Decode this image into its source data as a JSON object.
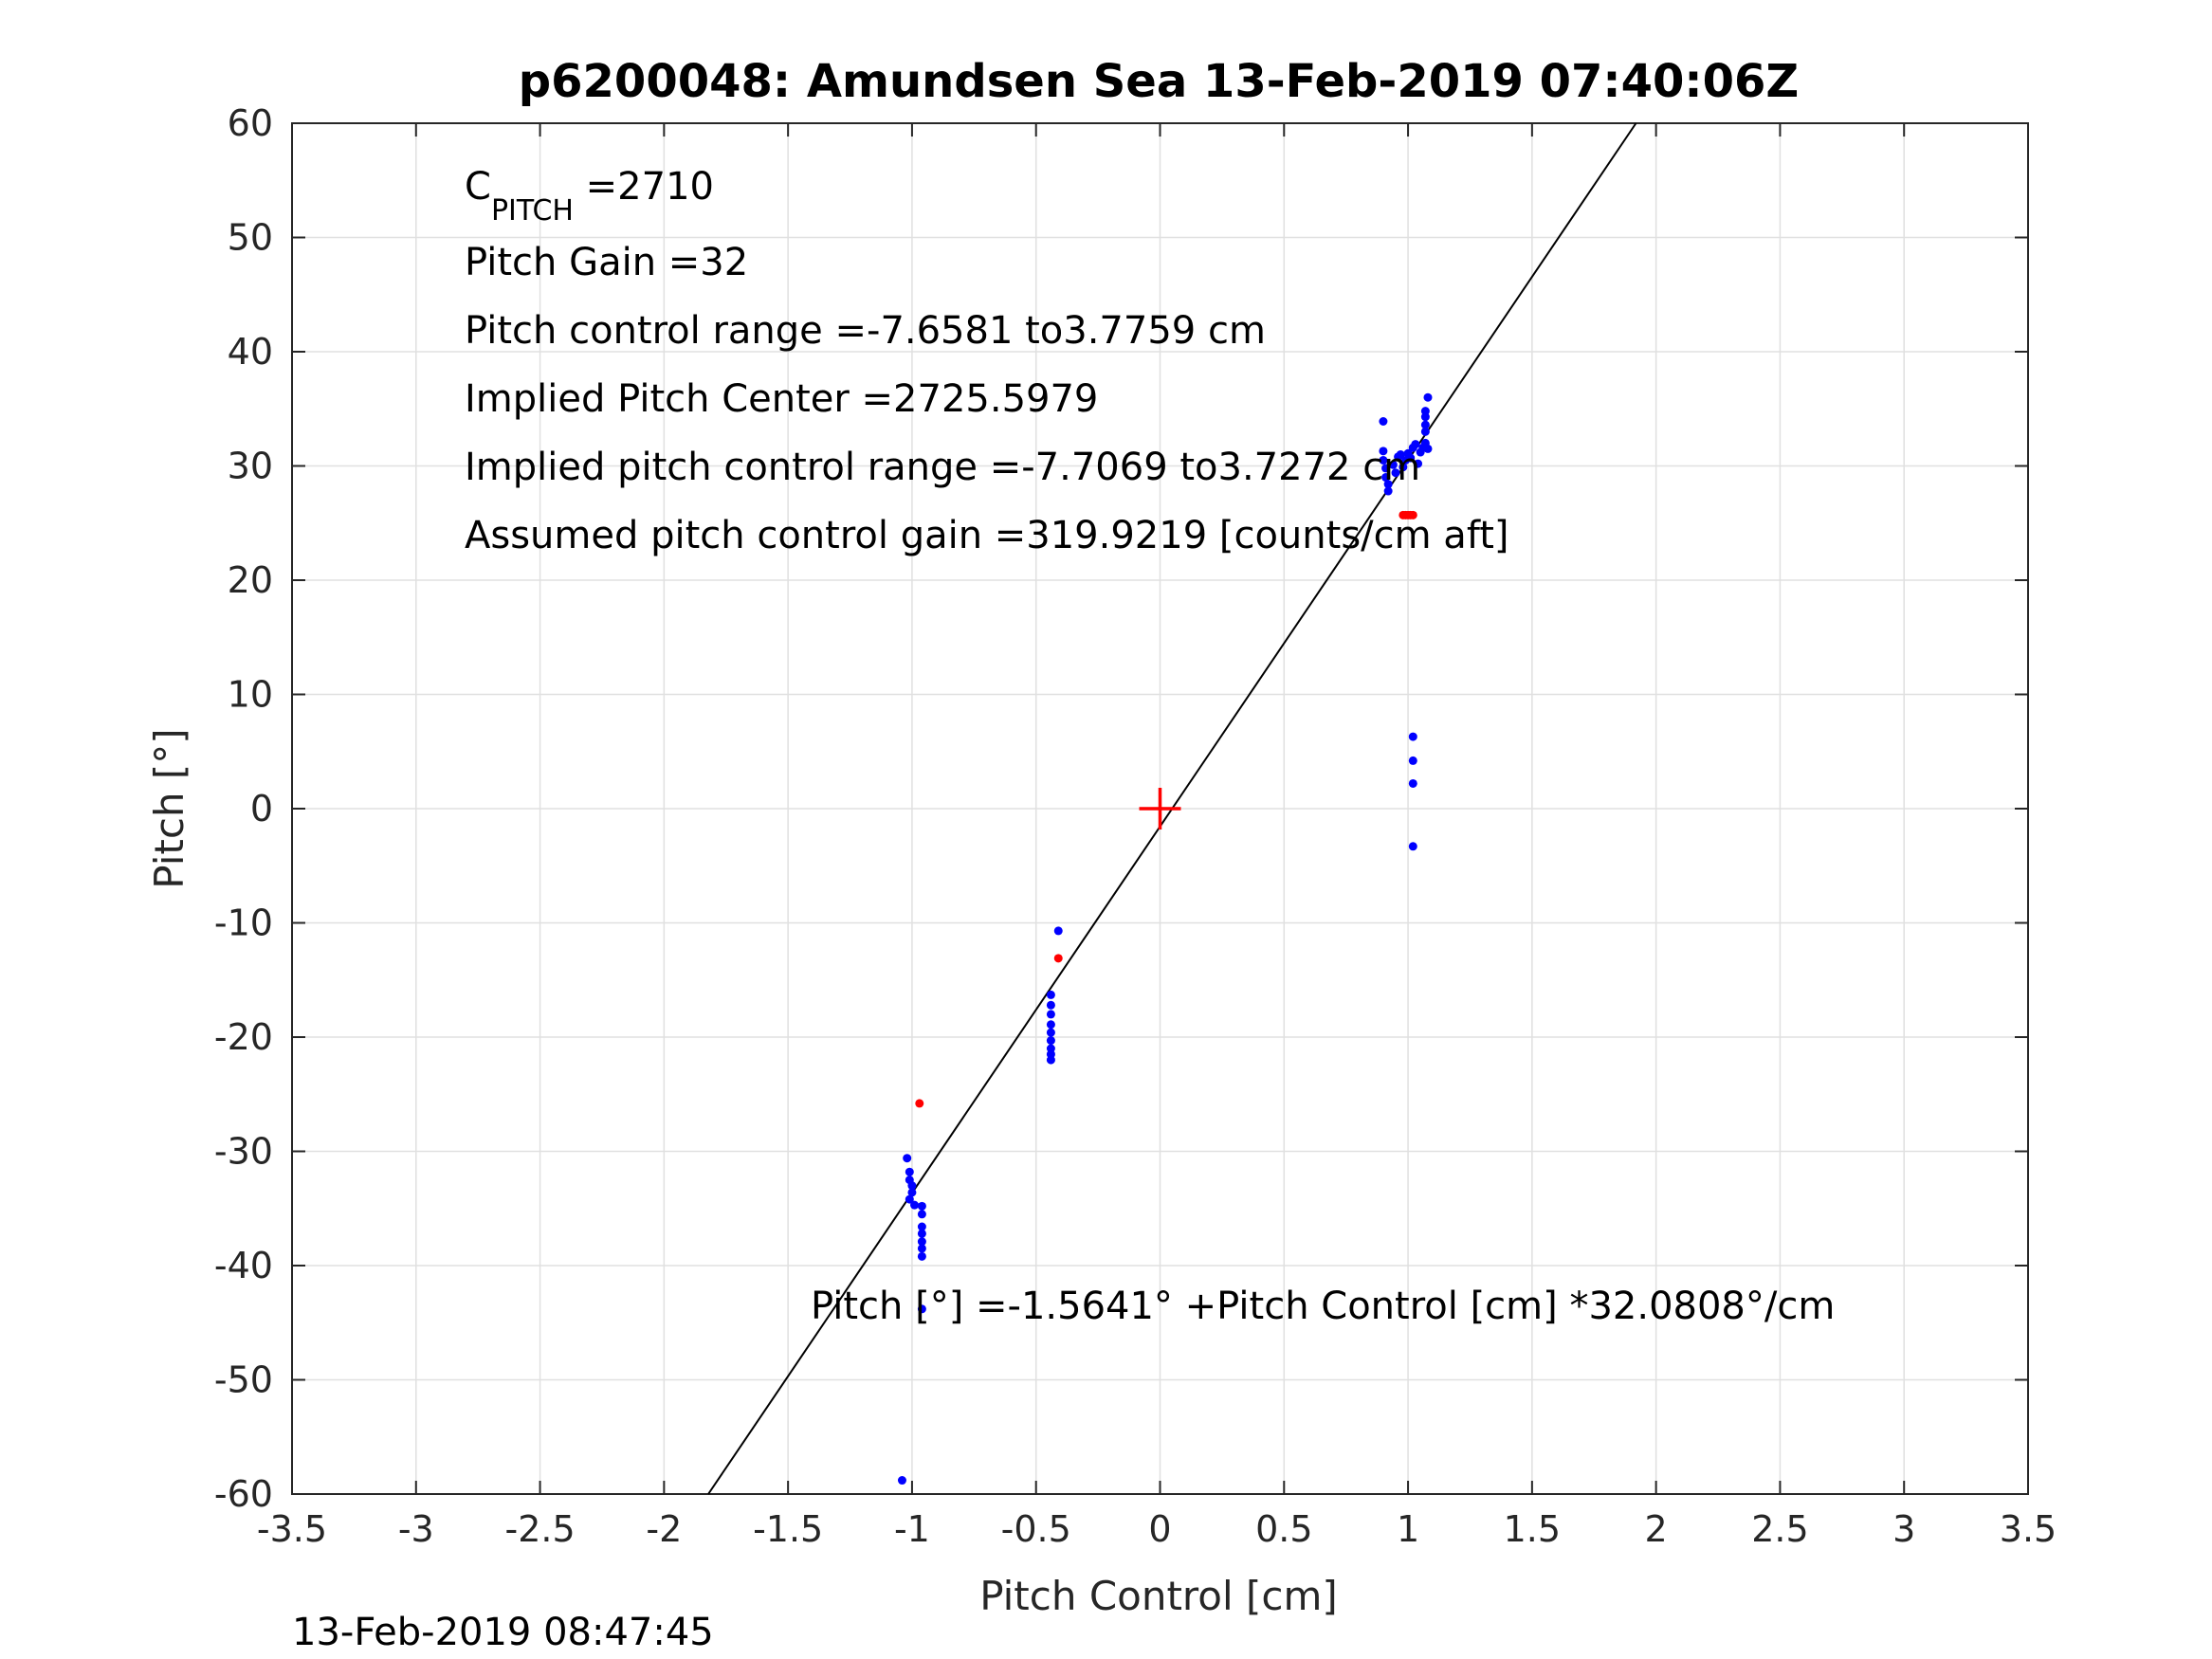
{
  "chart_data": {
    "type": "scatter",
    "title": "p6200048: Amundsen Sea 13-Feb-2019 07:40:06Z",
    "xlabel": "Pitch Control [cm]",
    "ylabel": "Pitch [°]",
    "xlim": [
      -3.5,
      3.5
    ],
    "ylim": [
      -60,
      60
    ],
    "xticks": [
      "-3.5",
      "-3",
      "-2.5",
      "-2",
      "-1.5",
      "-1",
      "-0.5",
      "0",
      "0.5",
      "1",
      "1.5",
      "2",
      "2.5",
      "3",
      "3.5"
    ],
    "xtick_values": [
      -3.5,
      -3,
      -2.5,
      -2,
      -1.5,
      -1,
      -0.5,
      0,
      0.5,
      1,
      1.5,
      2,
      2.5,
      3,
      3.5
    ],
    "yticks": [
      "60",
      "50",
      "40",
      "30",
      "20",
      "10",
      "0",
      "-10",
      "-20",
      "-30",
      "-40",
      "-50",
      "-60"
    ],
    "ytick_values": [
      60,
      50,
      40,
      30,
      20,
      10,
      0,
      -10,
      -20,
      -30,
      -40,
      -50,
      -60
    ],
    "grid": true,
    "colors": {
      "blue": "#0000ff",
      "red": "#ff0000",
      "line": "#000000",
      "grid": "#e0e0e0"
    },
    "series": [
      {
        "color": "blue",
        "points": [
          [
            -1.02,
            -30.6
          ],
          [
            -1.01,
            -31.8
          ],
          [
            -1.01,
            -32.5
          ],
          [
            -1.0,
            -33.0
          ],
          [
            -1.0,
            -33.6
          ],
          [
            -1.01,
            -34.2
          ],
          [
            -0.99,
            -34.7
          ],
          [
            -0.96,
            -34.8
          ],
          [
            -0.96,
            -35.5
          ],
          [
            -0.96,
            -36.6
          ],
          [
            -0.96,
            -37.2
          ],
          [
            -0.96,
            -37.9
          ],
          [
            -0.96,
            -38.5
          ],
          [
            -0.96,
            -39.2
          ],
          [
            -0.96,
            -43.8
          ],
          [
            -1.04,
            -58.8
          ],
          [
            -0.44,
            -16.3
          ],
          [
            -0.44,
            -17.2
          ],
          [
            -0.44,
            -18.0
          ],
          [
            -0.44,
            -18.9
          ],
          [
            -0.44,
            -19.6
          ],
          [
            -0.44,
            -20.3
          ],
          [
            -0.44,
            -21.0
          ],
          [
            -0.44,
            -21.5
          ],
          [
            -0.44,
            -22.0
          ],
          [
            -0.41,
            -10.7
          ],
          [
            0.9,
            33.9
          ],
          [
            0.9,
            31.3
          ],
          [
            0.9,
            30.5
          ],
          [
            0.91,
            29.8
          ],
          [
            0.91,
            29.0
          ],
          [
            0.92,
            28.4
          ],
          [
            0.92,
            27.8
          ],
          [
            0.94,
            30.1
          ],
          [
            0.95,
            29.4
          ],
          [
            0.96,
            30.8
          ],
          [
            0.97,
            31.0
          ],
          [
            0.98,
            29.9
          ],
          [
            0.99,
            30.5
          ],
          [
            1.0,
            31.1
          ],
          [
            1.01,
            30.7
          ],
          [
            1.02,
            31.6
          ],
          [
            1.03,
            31.9
          ],
          [
            1.04,
            30.2
          ],
          [
            1.05,
            31.2
          ],
          [
            1.06,
            31.6
          ],
          [
            1.07,
            32.0
          ],
          [
            1.07,
            33.0
          ],
          [
            1.07,
            33.6
          ],
          [
            1.07,
            34.3
          ],
          [
            1.07,
            34.8
          ],
          [
            1.08,
            36.0
          ],
          [
            1.08,
            31.5
          ],
          [
            1.02,
            6.3
          ],
          [
            1.02,
            4.2
          ],
          [
            1.02,
            2.2
          ],
          [
            1.02,
            -3.3
          ]
        ]
      },
      {
        "color": "red",
        "points": [
          [
            -0.97,
            -25.8
          ],
          [
            -0.41,
            -13.1
          ],
          [
            0.98,
            25.7
          ],
          [
            0.99,
            25.7
          ],
          [
            1.0,
            25.7
          ],
          [
            1.01,
            25.7
          ],
          [
            1.02,
            25.7
          ]
        ]
      }
    ],
    "fit_line": {
      "intercept": -1.5641,
      "slope": 32.0808
    },
    "center_marker": {
      "x": 0,
      "y": 0,
      "color": "red",
      "symbol": "+"
    },
    "annotations": {
      "cpitch_main": "C",
      "cpitch_sub": "PITCH",
      "cpitch_value": " =2710",
      "pitch_gain": "Pitch Gain =32",
      "pitch_control_range": "Pitch control range =-7.6581 to3.7759 cm",
      "implied_pitch_center": "Implied Pitch Center =2725.5979",
      "implied_pitch_control_range": "Implied pitch control range =-7.7069 to3.7272 cm",
      "assumed_gain": "Assumed pitch control gain =319.9219 [counts/cm aft]",
      "fit_equation": "Pitch [°] =-1.5641° +Pitch Control [cm] *32.0808°/cm"
    },
    "timestamp": "13-Feb-2019 08:47:45"
  }
}
